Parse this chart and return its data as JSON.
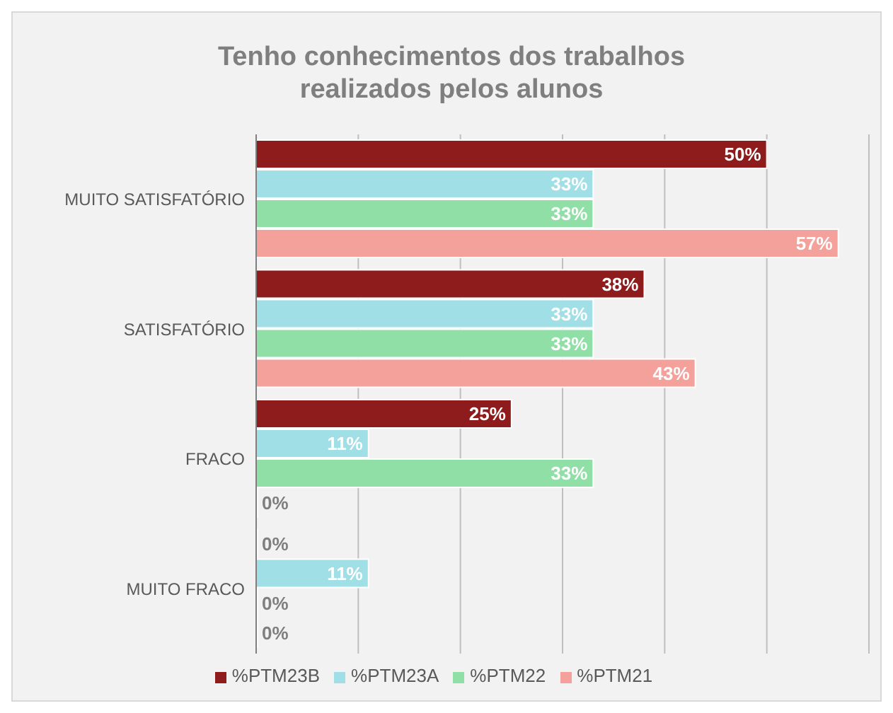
{
  "chart_data": {
    "type": "bar",
    "orientation": "horizontal",
    "title": "Tenho conhecimentos dos trabalhos realizados pelos alunos",
    "categories": [
      "MUITO SATISFATÓRIO",
      "SATISFATÓRIO",
      "FRACO",
      "MUITO FRACO"
    ],
    "series": [
      {
        "name": "%PTM23B",
        "color": "#8e1c1c",
        "values": [
          50,
          38,
          25,
          0
        ],
        "value_labels": [
          "50%",
          "38%",
          "25%",
          "0%"
        ]
      },
      {
        "name": "%PTM23A",
        "color": "#a0dfe6",
        "values": [
          33,
          33,
          11,
          11
        ],
        "value_labels": [
          "33%",
          "33%",
          "11%",
          "11%"
        ]
      },
      {
        "name": "%PTM22",
        "color": "#8fdfa6",
        "values": [
          33,
          33,
          33,
          0
        ],
        "value_labels": [
          "33%",
          "33%",
          "33%",
          "0%"
        ]
      },
      {
        "name": "%PTM21",
        "color": "#f4a19c",
        "values": [
          57,
          43,
          0,
          0
        ],
        "value_labels": [
          "57%",
          "43%",
          "0%",
          "0%"
        ]
      }
    ],
    "xlim": [
      0,
      60
    ],
    "xticks": [
      {
        "value": 0,
        "label": null
      },
      {
        "value": 10,
        "label": null
      },
      {
        "value": 20,
        "label": null
      },
      {
        "value": 30,
        "label": null
      },
      {
        "value": 40,
        "label": null
      },
      {
        "value": 50,
        "label": null
      },
      {
        "value": 60,
        "label": null
      }
    ],
    "tick_labels": "y",
    "grid": "x",
    "legend": "bottom"
  }
}
